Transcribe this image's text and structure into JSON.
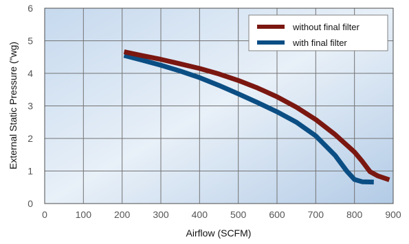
{
  "chart_data": {
    "type": "line",
    "title": "",
    "xlabel": "Airflow (SCFM)",
    "ylabel": "External Static Pressure (\"wg)",
    "xlim": [
      0,
      900
    ],
    "ylim": [
      0,
      6
    ],
    "xticks": [
      "0",
      "100",
      "200",
      "300",
      "400",
      "500",
      "600",
      "700",
      "800",
      "900"
    ],
    "yticks": [
      "0",
      "1",
      "2",
      "3",
      "4",
      "5",
      "6"
    ],
    "grid": true,
    "legend_position": "top-right",
    "series": [
      {
        "name": "without final filter",
        "color": "#7a1710",
        "x": [
          205,
          250,
          300,
          350,
          400,
          450,
          500,
          550,
          600,
          650,
          700,
          750,
          800,
          820,
          840,
          860,
          890
        ],
        "y": [
          4.66,
          4.55,
          4.43,
          4.29,
          4.15,
          3.98,
          3.78,
          3.55,
          3.28,
          2.96,
          2.58,
          2.12,
          1.58,
          1.3,
          0.98,
          0.85,
          0.73
        ]
      },
      {
        "name": "with final filter",
        "color": "#0b4e84",
        "x": [
          205,
          250,
          300,
          350,
          400,
          450,
          500,
          550,
          600,
          650,
          700,
          750,
          780,
          800,
          820,
          850
        ],
        "y": [
          4.55,
          4.41,
          4.25,
          4.07,
          3.87,
          3.63,
          3.37,
          3.1,
          2.82,
          2.5,
          2.08,
          1.48,
          1.0,
          0.74,
          0.67,
          0.66
        ]
      }
    ]
  }
}
